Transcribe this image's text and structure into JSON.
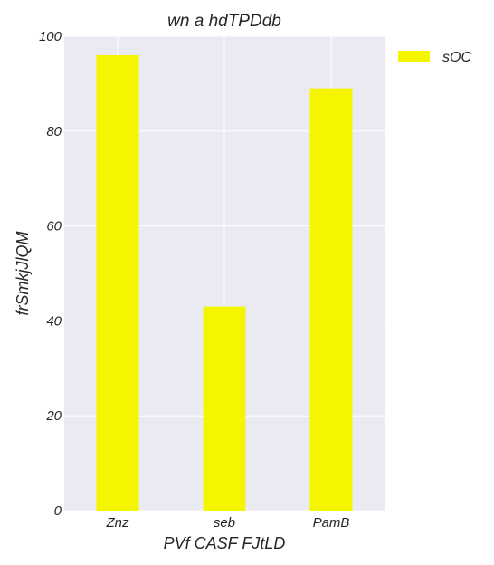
{
  "chart_data": {
    "type": "bar",
    "title": "wn  a hdTPDdb",
    "xlabel": "PVf CASF FJtLD",
    "ylabel": "frSmkjJlQM",
    "categories": [
      "Znz",
      "seb",
      "PamB"
    ],
    "series": [
      {
        "name": "sOC",
        "values": [
          96,
          43,
          89
        ],
        "color": "#f5f500"
      }
    ],
    "ylim": [
      0,
      100
    ],
    "yticks": [
      0,
      20,
      40,
      60,
      80,
      100
    ],
    "grid": true,
    "legend_position": "top-right-outside",
    "background_color": "#eaeaf2",
    "grid_color": "#ffffff"
  }
}
